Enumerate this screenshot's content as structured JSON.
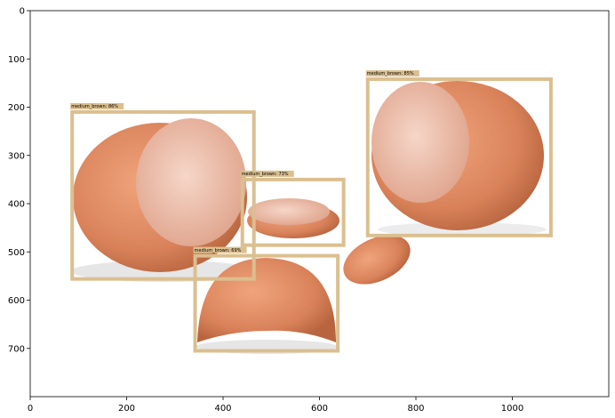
{
  "chart_data": {
    "type": "detection",
    "xlim": [
      0,
      1200
    ],
    "ylim": [
      800,
      0
    ],
    "xticks": [
      0,
      200,
      400,
      600,
      800,
      1000
    ],
    "yticks": [
      0,
      100,
      200,
      300,
      400,
      500,
      600,
      700
    ],
    "color": "#dbbf8f",
    "boxes": [
      {
        "x0": 87,
        "x1": 464,
        "y0": 210,
        "y1": 556,
        "value": 86,
        "value_label": "medium_brown: 86%"
      },
      {
        "x0": 440,
        "x1": 650,
        "y0": 350,
        "y1": 486,
        "value": 73,
        "value_label": "medium_brown: 73%"
      },
      {
        "x0": 700,
        "x1": 1080,
        "y0": 142,
        "y1": 466,
        "value": 85,
        "value_label": "medium_brown: 85%"
      },
      {
        "x0": 342,
        "x1": 638,
        "y0": 508,
        "y1": 705,
        "value": 69,
        "value_label": "medium_brown: 69%"
      }
    ]
  }
}
